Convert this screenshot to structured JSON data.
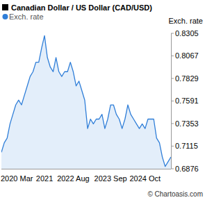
{
  "chart_data": {
    "type": "area",
    "title": "Canadian Dollar / US Dollar (CAD/USD)",
    "y_label": "Exch. rate",
    "source": "© Chartoasis.com",
    "categories": [
      null,
      null,
      null,
      null,
      null,
      "2020 Mar",
      null,
      null,
      null,
      null,
      null,
      null,
      null,
      null,
      null,
      "2021",
      null,
      null,
      null,
      null,
      null,
      null,
      null,
      null,
      null,
      "2022 Aug",
      null,
      null,
      null,
      null,
      null,
      null,
      null,
      null,
      null,
      null,
      null,
      null,
      "2023 Sep",
      null,
      null,
      null,
      null,
      null,
      null,
      null,
      null,
      null,
      null,
      null,
      "2024 Oct",
      null,
      null,
      null,
      null,
      null,
      null,
      null,
      null,
      null
    ],
    "series": [
      {
        "name": "Exch. rate",
        "color": "#2f7ed8",
        "values": [
          0.705,
          0.715,
          0.72,
          0.735,
          0.745,
          0.755,
          0.76,
          0.755,
          0.765,
          0.775,
          0.785,
          0.79,
          0.8,
          0.8,
          0.815,
          0.828,
          0.805,
          0.795,
          0.79,
          0.805,
          0.79,
          0.785,
          0.79,
          0.79,
          0.8,
          0.79,
          0.775,
          0.78,
          0.77,
          0.76,
          0.73,
          0.74,
          0.735,
          0.74,
          0.74,
          0.745,
          0.73,
          0.74,
          0.755,
          0.755,
          0.745,
          0.74,
          0.73,
          0.74,
          0.755,
          0.745,
          0.74,
          0.735,
          0.73,
          0.735,
          0.73,
          0.74,
          0.74,
          0.74,
          0.72,
          0.715,
          0.7,
          0.69,
          0.695,
          0.7
        ]
      }
    ],
    "ylim": [
      0.6876,
      0.8305
    ],
    "yticks": [
      0.6876,
      0.7115,
      0.7353,
      0.7591,
      0.7829,
      0.8067,
      0.8305
    ],
    "grid": false,
    "legend": "top-left"
  }
}
